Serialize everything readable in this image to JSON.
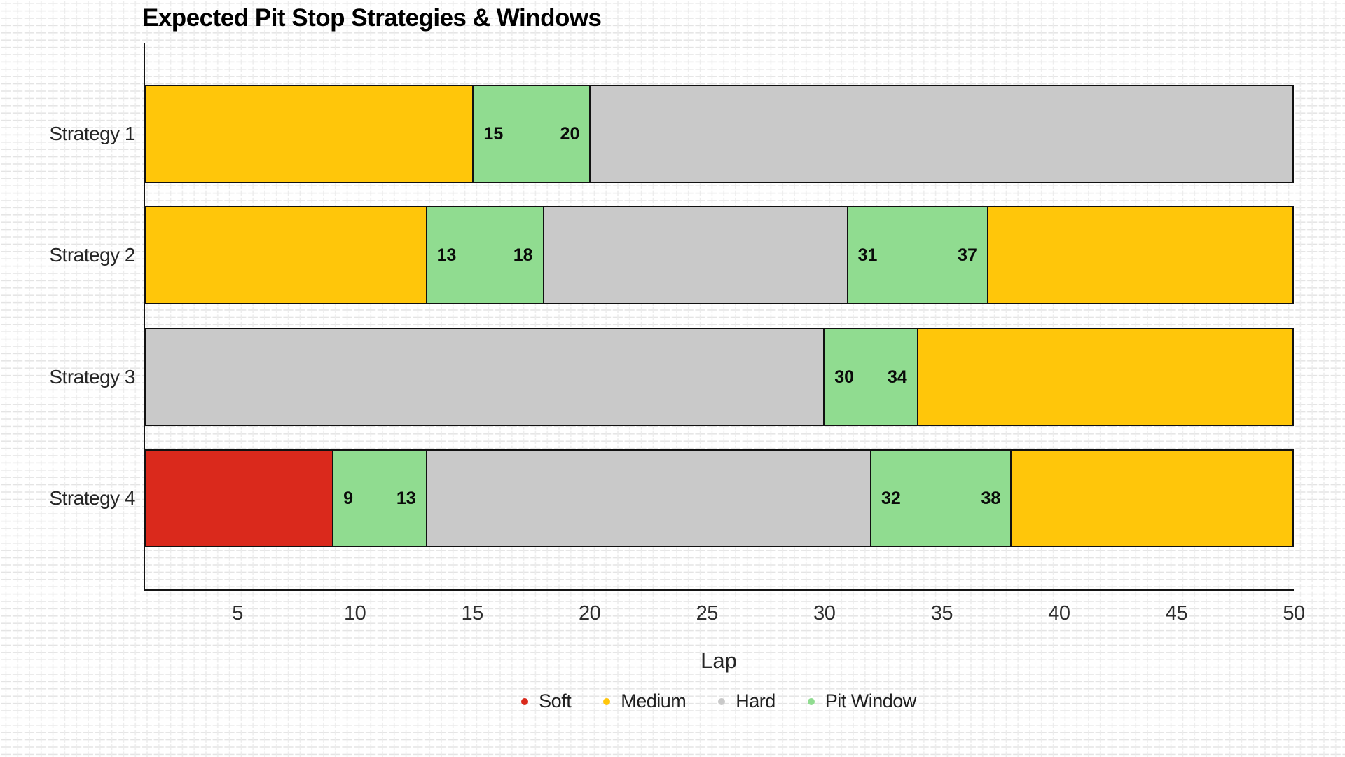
{
  "title": "Expected Pit Stop Strategies & Windows",
  "chart_data": {
    "type": "stacked-barh",
    "title": "Expected Pit Stop Strategies & Windows",
    "xlabel": "Lap",
    "xlim": [
      1,
      50
    ],
    "x_ticks": [
      5,
      10,
      15,
      20,
      25,
      30,
      35,
      40,
      45,
      50
    ],
    "grid": "light cross-hatch background",
    "legend_position": "bottom-center",
    "legend": [
      {
        "label": "Soft",
        "color": "#da291c"
      },
      {
        "label": "Medium",
        "color": "#ffc60a"
      },
      {
        "label": "Hard",
        "color": "#c9c9c9"
      },
      {
        "label": "Pit Window",
        "color": "#90dc90"
      }
    ],
    "colors": {
      "Soft": "#da291c",
      "Medium": "#ffc60a",
      "Hard": "#c9c9c9",
      "Pit Window": "#90dc90"
    },
    "categories": [
      "Strategy 1",
      "Strategy 2",
      "Strategy 3",
      "Strategy 4"
    ],
    "rows": [
      {
        "category": "Strategy 1",
        "segments": [
          {
            "type": "Medium",
            "start": 1,
            "end": 15
          },
          {
            "type": "Pit Window",
            "start": 15,
            "end": 20,
            "labels": [
              "15",
              "20"
            ]
          },
          {
            "type": "Hard",
            "start": 20,
            "end": 50
          }
        ]
      },
      {
        "category": "Strategy 2",
        "segments": [
          {
            "type": "Medium",
            "start": 1,
            "end": 13
          },
          {
            "type": "Pit Window",
            "start": 13,
            "end": 18,
            "labels": [
              "13",
              "18"
            ]
          },
          {
            "type": "Hard",
            "start": 18,
            "end": 31
          },
          {
            "type": "Pit Window",
            "start": 31,
            "end": 37,
            "labels": [
              "31",
              "37"
            ]
          },
          {
            "type": "Medium",
            "start": 37,
            "end": 50
          }
        ]
      },
      {
        "category": "Strategy 3",
        "segments": [
          {
            "type": "Hard",
            "start": 1,
            "end": 30
          },
          {
            "type": "Pit Window",
            "start": 30,
            "end": 34,
            "labels": [
              "30",
              "34"
            ]
          },
          {
            "type": "Medium",
            "start": 34,
            "end": 50
          }
        ]
      },
      {
        "category": "Strategy 4",
        "segments": [
          {
            "type": "Soft",
            "start": 1,
            "end": 9
          },
          {
            "type": "Pit Window",
            "start": 9,
            "end": 13,
            "labels": [
              "9",
              "13"
            ]
          },
          {
            "type": "Hard",
            "start": 13,
            "end": 32
          },
          {
            "type": "Pit Window",
            "start": 32,
            "end": 38,
            "labels": [
              "32",
              "38"
            ]
          },
          {
            "type": "Medium",
            "start": 38,
            "end": 50
          }
        ]
      }
    ]
  }
}
